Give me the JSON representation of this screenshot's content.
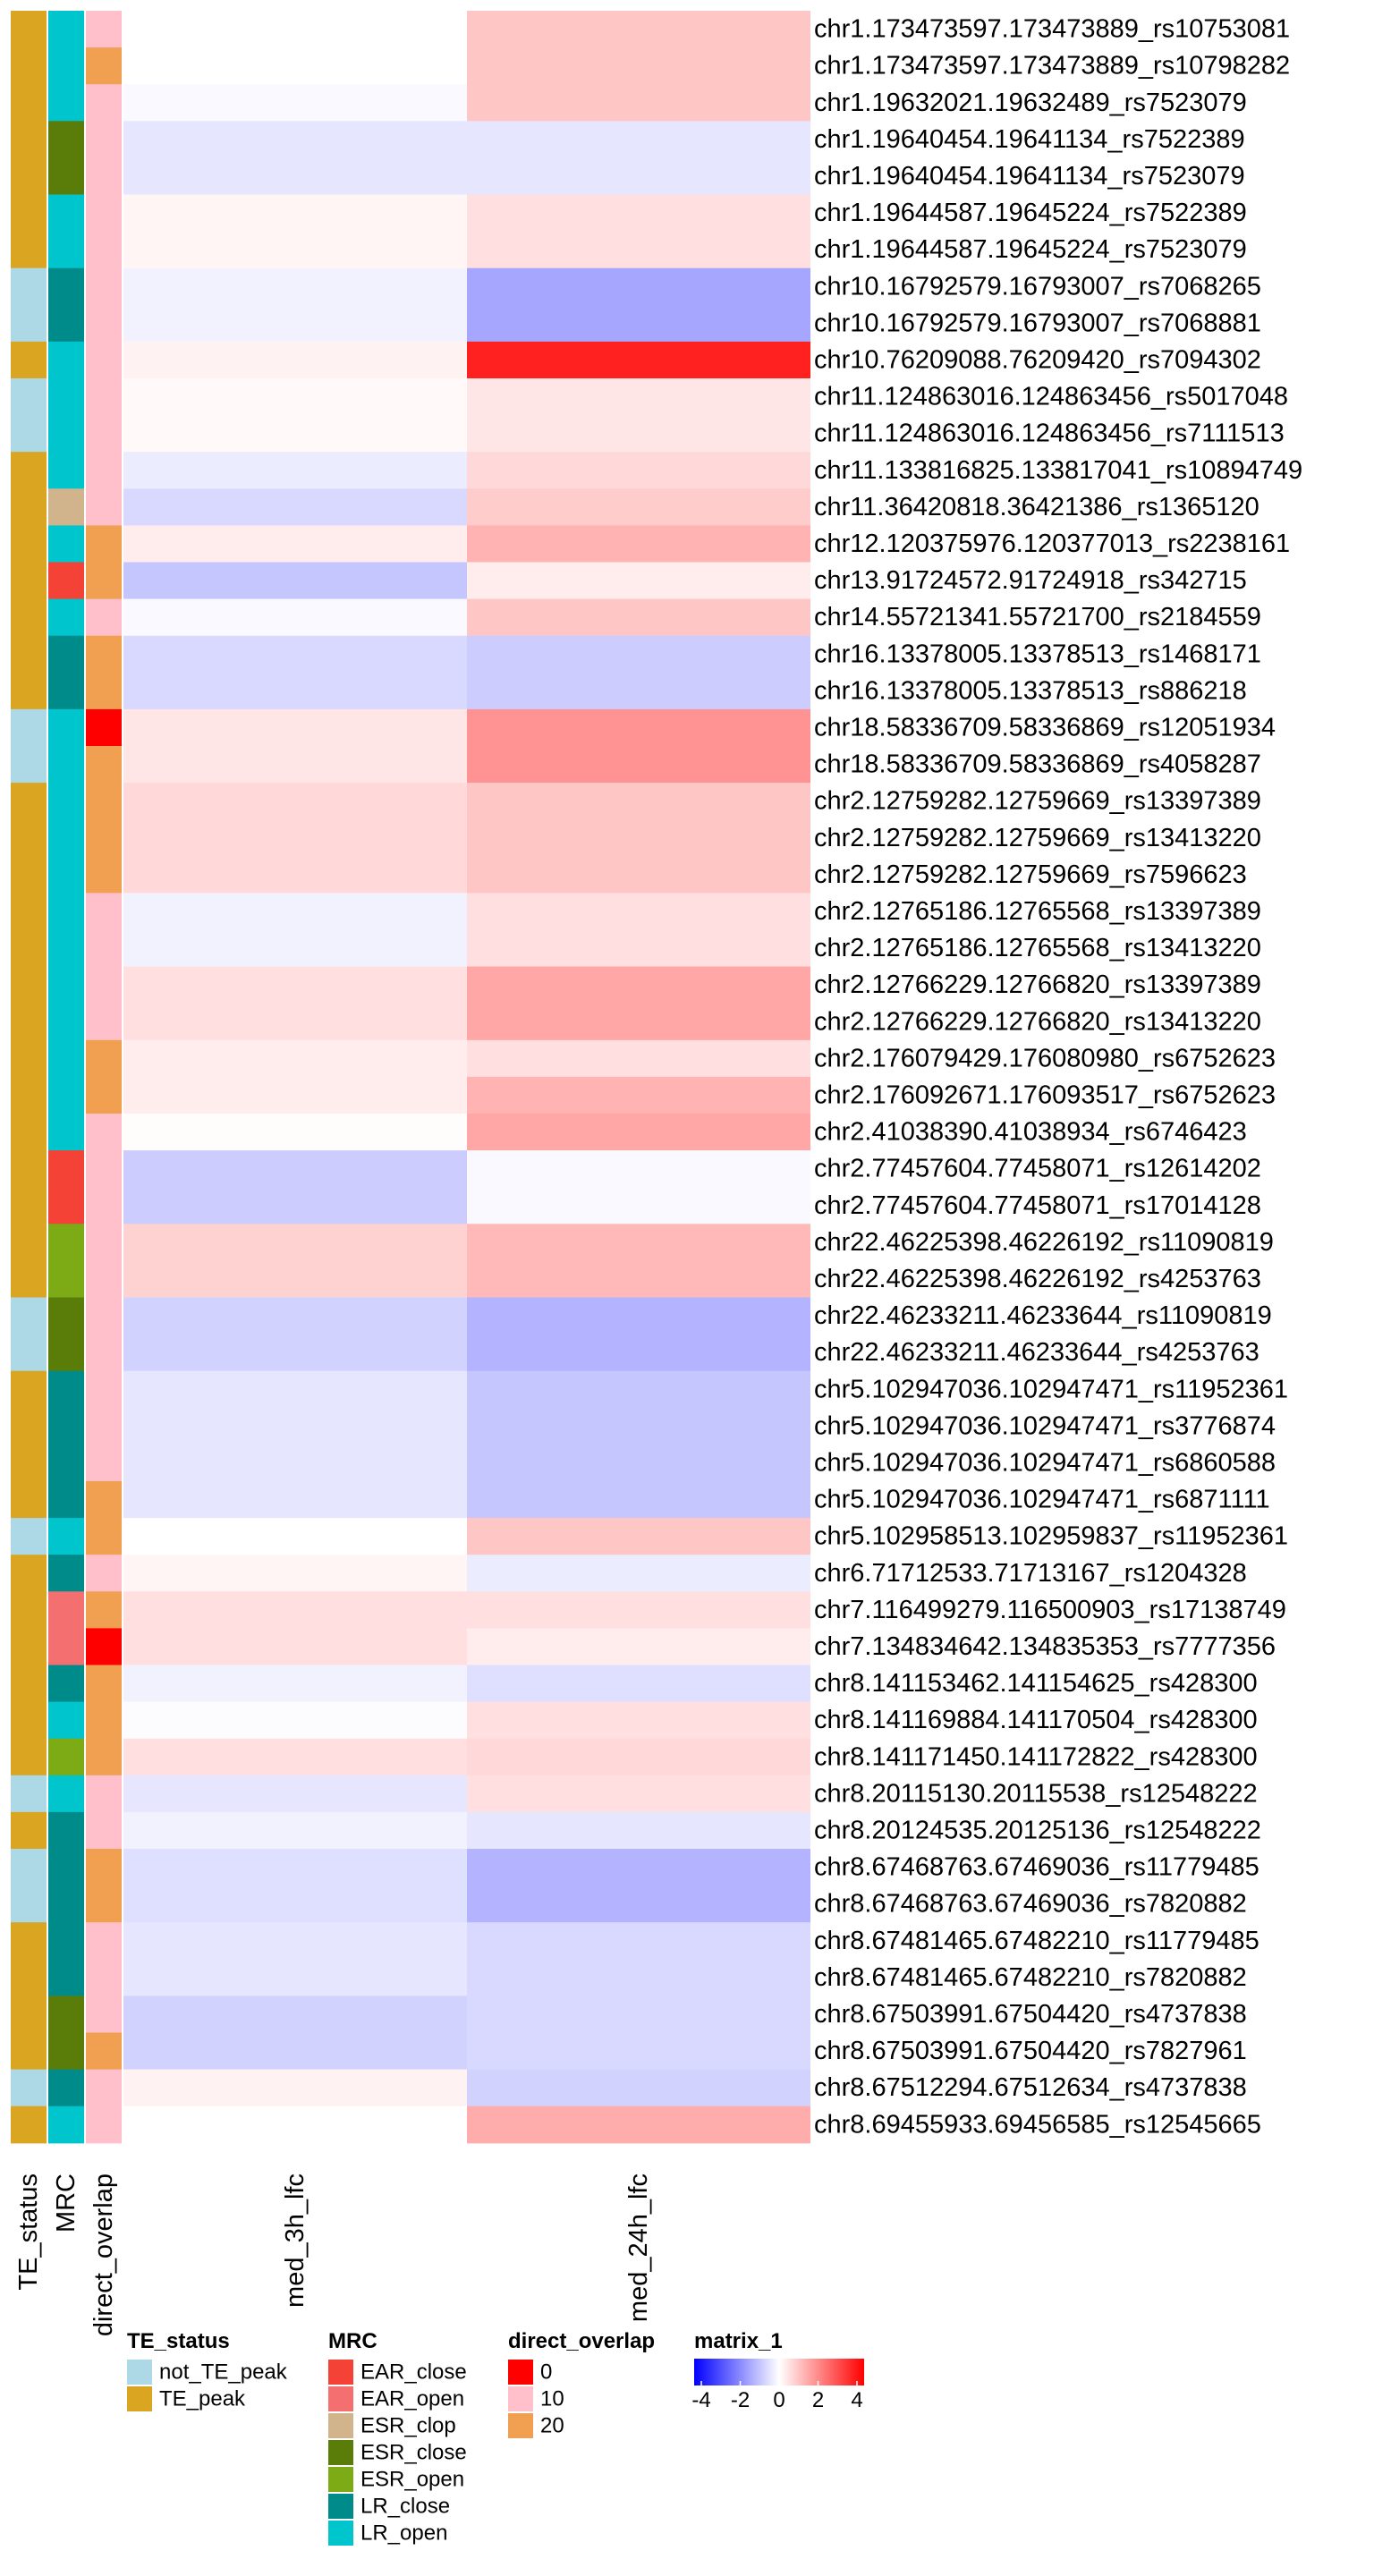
{
  "chart_data": {
    "type": "heatmap",
    "columns": [
      "med_3h_lfc",
      "med_24h_lfc"
    ],
    "annotation_columns": [
      "TE_status",
      "MRC",
      "direct_overlap"
    ],
    "rows": [
      "chr1.173473597.173473889_rs10753081",
      "chr1.173473597.173473889_rs10798282",
      "chr1.19632021.19632489_rs7523079",
      "chr1.19640454.19641134_rs7522389",
      "chr1.19640454.19641134_rs7523079",
      "chr1.19644587.19645224_rs7522389",
      "chr1.19644587.19645224_rs7523079",
      "chr10.16792579.16793007_rs7068265",
      "chr10.16792579.16793007_rs7068881",
      "chr10.76209088.76209420_rs7094302",
      "chr11.124863016.124863456_rs5017048",
      "chr11.124863016.124863456_rs7111513",
      "chr11.133816825.133817041_rs10894749",
      "chr11.36420818.36421386_rs1365120",
      "chr12.120375976.120377013_rs2238161",
      "chr13.91724572.91724918_rs342715",
      "chr14.55721341.55721700_rs2184559",
      "chr16.13378005.13378513_rs1468171",
      "chr16.13378005.13378513_rs886218",
      "chr18.58336709.58336869_rs12051934",
      "chr18.58336709.58336869_rs4058287",
      "chr2.12759282.12759669_rs13397389",
      "chr2.12759282.12759669_rs13413220",
      "chr2.12759282.12759669_rs7596623",
      "chr2.12765186.12765568_rs13397389",
      "chr2.12765186.12765568_rs13413220",
      "chr2.12766229.12766820_rs13397389",
      "chr2.12766229.12766820_rs13413220",
      "chr2.176079429.176080980_rs6752623",
      "chr2.176092671.176093517_rs6752623",
      "chr2.41038390.41038934_rs6746423",
      "chr2.77457604.77458071_rs12614202",
      "chr2.77457604.77458071_rs17014128",
      "chr22.46225398.46226192_rs11090819",
      "chr22.46225398.46226192_rs4253763",
      "chr22.46233211.46233644_rs11090819",
      "chr22.46233211.46233644_rs4253763",
      "chr5.102947036.102947471_rs11952361",
      "chr5.102947036.102947471_rs3776874",
      "chr5.102947036.102947471_rs6860588",
      "chr5.102947036.102947471_rs6871111",
      "chr5.102958513.102959837_rs11952361",
      "chr6.71712533.71713167_rs1204328",
      "chr7.116499279.116500903_rs17138749",
      "chr7.134834642.134835353_rs7777356",
      "chr8.141153462.141154625_rs428300",
      "chr8.141169884.141170504_rs428300",
      "chr8.141171450.141172822_rs428300",
      "chr8.20115130.20115538_rs12548222",
      "chr8.20124535.20125136_rs12548222",
      "chr8.67468763.67469036_rs11779485",
      "chr8.67468763.67469036_rs7820882",
      "chr8.67481465.67482210_rs11779485",
      "chr8.67481465.67482210_rs7820882",
      "chr8.67503991.67504420_rs4737838",
      "chr8.67503991.67504420_rs7827961",
      "chr8.67512294.67512634_rs4737838",
      "chr8.69455933.69456585_rs12545665"
    ],
    "values": [
      [
        0.0,
        0.9
      ],
      [
        0.0,
        0.9
      ],
      [
        -0.1,
        0.9
      ],
      [
        -0.4,
        -0.4
      ],
      [
        -0.4,
        -0.4
      ],
      [
        0.15,
        0.5
      ],
      [
        0.15,
        0.5
      ],
      [
        -0.2,
        -1.4
      ],
      [
        -0.2,
        -1.4
      ],
      [
        0.2,
        3.5
      ],
      [
        0.1,
        0.4
      ],
      [
        0.1,
        0.4
      ],
      [
        -0.3,
        0.6
      ],
      [
        -0.6,
        0.8
      ],
      [
        0.3,
        1.2
      ],
      [
        -0.9,
        0.3
      ],
      [
        -0.1,
        0.9
      ],
      [
        -0.6,
        -0.8
      ],
      [
        -0.6,
        -0.8
      ],
      [
        0.4,
        1.7
      ],
      [
        0.4,
        1.7
      ],
      [
        0.6,
        0.9
      ],
      [
        0.6,
        0.9
      ],
      [
        0.6,
        0.9
      ],
      [
        -0.2,
        0.5
      ],
      [
        -0.2,
        0.5
      ],
      [
        0.5,
        1.4
      ],
      [
        0.5,
        1.4
      ],
      [
        0.3,
        0.5
      ],
      [
        0.3,
        1.2
      ],
      [
        0.05,
        1.4
      ],
      [
        -0.8,
        -0.1
      ],
      [
        -0.8,
        -0.1
      ],
      [
        0.7,
        1.1
      ],
      [
        0.7,
        1.1
      ],
      [
        -0.7,
        -1.2
      ],
      [
        -0.7,
        -1.2
      ],
      [
        -0.4,
        -0.9
      ],
      [
        -0.4,
        -0.9
      ],
      [
        -0.4,
        -0.9
      ],
      [
        -0.4,
        -0.9
      ],
      [
        0.0,
        0.9
      ],
      [
        0.15,
        -0.3
      ],
      [
        0.5,
        0.5
      ],
      [
        0.5,
        0.3
      ],
      [
        -0.2,
        -0.5
      ],
      [
        -0.05,
        0.5
      ],
      [
        0.5,
        0.6
      ],
      [
        -0.4,
        0.5
      ],
      [
        -0.2,
        -0.4
      ],
      [
        -0.5,
        -1.2
      ],
      [
        -0.5,
        -1.2
      ],
      [
        -0.4,
        -0.6
      ],
      [
        -0.4,
        -0.6
      ],
      [
        -0.7,
        -0.6
      ],
      [
        -0.7,
        -0.6
      ],
      [
        0.2,
        -0.7
      ],
      [
        0.0,
        1.3
      ]
    ],
    "annotations": {
      "TE_status": [
        "TE_peak",
        "TE_peak",
        "TE_peak",
        "TE_peak",
        "TE_peak",
        "TE_peak",
        "TE_peak",
        "not_TE_peak",
        "not_TE_peak",
        "TE_peak",
        "not_TE_peak",
        "not_TE_peak",
        "TE_peak",
        "TE_peak",
        "TE_peak",
        "TE_peak",
        "TE_peak",
        "TE_peak",
        "TE_peak",
        "not_TE_peak",
        "not_TE_peak",
        "TE_peak",
        "TE_peak",
        "TE_peak",
        "TE_peak",
        "TE_peak",
        "TE_peak",
        "TE_peak",
        "TE_peak",
        "TE_peak",
        "TE_peak",
        "TE_peak",
        "TE_peak",
        "TE_peak",
        "TE_peak",
        "not_TE_peak",
        "not_TE_peak",
        "TE_peak",
        "TE_peak",
        "TE_peak",
        "TE_peak",
        "not_TE_peak",
        "TE_peak",
        "TE_peak",
        "TE_peak",
        "TE_peak",
        "TE_peak",
        "TE_peak",
        "not_TE_peak",
        "TE_peak",
        "not_TE_peak",
        "not_TE_peak",
        "TE_peak",
        "TE_peak",
        "TE_peak",
        "TE_peak",
        "not_TE_peak",
        "TE_peak"
      ],
      "MRC": [
        "LR_open",
        "LR_open",
        "LR_open",
        "ESR_close",
        "ESR_close",
        "LR_open",
        "LR_open",
        "LR_close",
        "LR_close",
        "LR_open",
        "LR_open",
        "LR_open",
        "LR_open",
        "ESR_clop",
        "LR_open",
        "EAR_close",
        "LR_open",
        "LR_close",
        "LR_close",
        "LR_open",
        "LR_open",
        "LR_open",
        "LR_open",
        "LR_open",
        "LR_open",
        "LR_open",
        "LR_open",
        "LR_open",
        "LR_open",
        "LR_open",
        "LR_open",
        "EAR_close",
        "EAR_close",
        "ESR_open",
        "ESR_open",
        "ESR_close",
        "ESR_close",
        "LR_close",
        "LR_close",
        "LR_close",
        "LR_close",
        "LR_open",
        "LR_close",
        "EAR_open",
        "EAR_open",
        "LR_close",
        "LR_open",
        "ESR_open",
        "LR_open",
        "LR_close",
        "LR_close",
        "LR_close",
        "LR_close",
        "LR_close",
        "ESR_close",
        "ESR_close",
        "LR_close",
        "LR_open"
      ],
      "direct_overlap": [
        "10",
        "20",
        "10",
        "10",
        "10",
        "10",
        "10",
        "10",
        "10",
        "10",
        "10",
        "10",
        "10",
        "10",
        "20",
        "20",
        "10",
        "20",
        "20",
        "0",
        "20",
        "20",
        "20",
        "20",
        "10",
        "10",
        "10",
        "10",
        "20",
        "20",
        "10",
        "10",
        "10",
        "10",
        "10",
        "10",
        "10",
        "10",
        "10",
        "10",
        "20",
        "20",
        "10",
        "20",
        "0",
        "20",
        "20",
        "20",
        "10",
        "10",
        "20",
        "20",
        "10",
        "10",
        "10",
        "20",
        "10",
        "10"
      ]
    },
    "color_scale": {
      "name": "matrix_1",
      "min": -4,
      "max": 4,
      "ticks": [
        "-4",
        "-2",
        "0",
        "2",
        "4"
      ],
      "low": "#0000ff",
      "mid": "#ffffff",
      "high": "#ff0000"
    },
    "legends": [
      {
        "title": "TE_status",
        "items": [
          {
            "label": "not_TE_peak",
            "color": "#add8e6"
          },
          {
            "label": "TE_peak",
            "color": "#daa520"
          }
        ]
      },
      {
        "title": "MRC",
        "items": [
          {
            "label": "EAR_close",
            "color": "#f44336"
          },
          {
            "label": "EAR_open",
            "color": "#f47070"
          },
          {
            "label": "ESR_clop",
            "color": "#d2b48c"
          },
          {
            "label": "ESR_close",
            "color": "#5a7d0a"
          },
          {
            "label": "ESR_open",
            "color": "#7cab16"
          },
          {
            "label": "LR_close",
            "color": "#008b8b"
          },
          {
            "label": "LR_open",
            "color": "#00c5cd"
          }
        ]
      },
      {
        "title": "direct_overlap",
        "items": [
          {
            "label": "0",
            "color": "#ff0000"
          },
          {
            "label": "10",
            "color": "#ffc0cb"
          },
          {
            "label": "20",
            "color": "#f0a050"
          }
        ]
      }
    ]
  }
}
